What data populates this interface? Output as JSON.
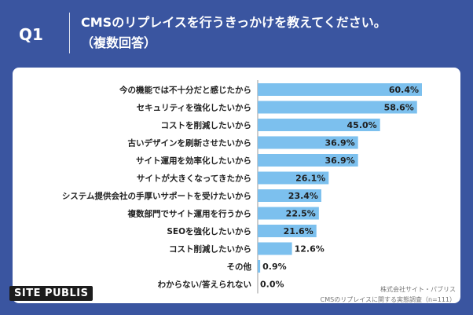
{
  "header": {
    "q_label": "Q1",
    "title_line1": "CMSのリプレイスを行うきっかけを教えてください。",
    "title_line2": "（複数回答）"
  },
  "footer": {
    "logo": "SITE PUBLIS",
    "source_line1": "株式会社サイト・パブリス",
    "source_line2": "CMSのリプレイスに関する実態調査（n=111）"
  },
  "colors": {
    "background": "#3a55a0",
    "bar": "#7cc0ee",
    "card": "#ffffff"
  },
  "chart_data": {
    "type": "bar",
    "orientation": "horizontal",
    "categories": [
      "今の機能では不十分だと感じたから",
      "セキュリティを強化したいから",
      "コストを削減したいから",
      "古いデザインを刷新させたいから",
      "サイト運用を効率化したいから",
      "サイトが大きくなってきたから",
      "システム提供会社の手厚いサポートを受けたいから",
      "複数部門でサイト運用を行うから",
      "SEOを強化したいから",
      "コスト削減したいから",
      "その他",
      "わからない/答えられない"
    ],
    "values": [
      60.4,
      58.6,
      45.0,
      36.9,
      36.9,
      26.1,
      23.4,
      22.5,
      21.6,
      12.6,
      0.9,
      0.0
    ],
    "value_labels": [
      "60.4%",
      "58.6%",
      "45.0%",
      "36.9%",
      "36.9%",
      "26.1%",
      "23.4%",
      "22.5%",
      "21.6%",
      "12.6%",
      "0.9%",
      "0.0%"
    ],
    "xlim": [
      0,
      60.4
    ],
    "grid": false,
    "legend": "none"
  }
}
